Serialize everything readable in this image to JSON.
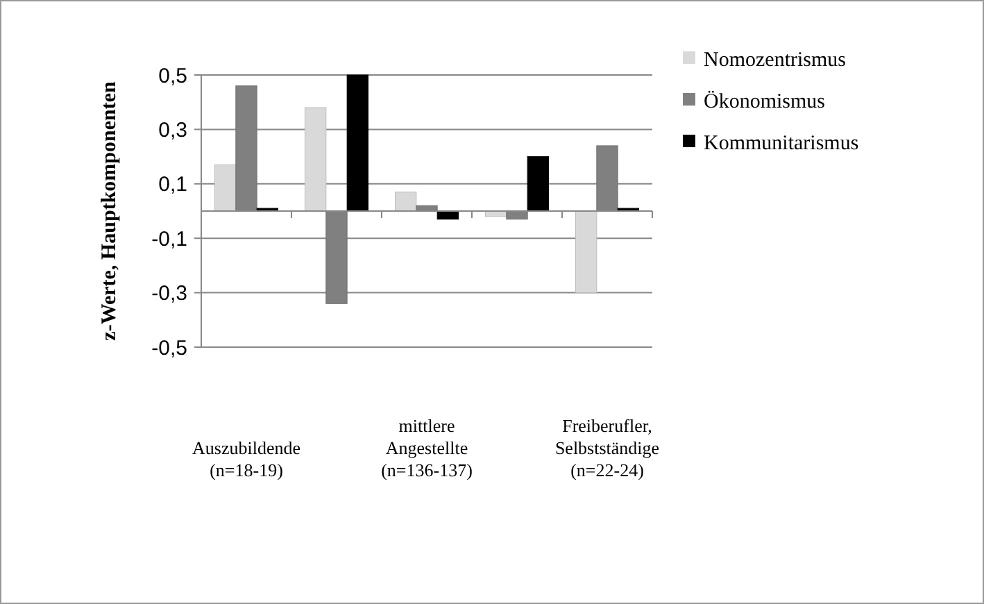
{
  "chart_data": {
    "type": "bar",
    "ylabel": "z-Werte, Hauptkomponenten",
    "categories": [
      "Auszubildende (n=18-19)",
      null,
      "mittlere Angestellte (n=136-137)",
      null,
      "Freiberufler, Selbstständige (n=22-24)"
    ],
    "series": [
      {
        "name": "Nomozentrismus",
        "color": "#d9d9d9",
        "values": [
          0.17,
          0.38,
          0.07,
          -0.02,
          -0.3
        ]
      },
      {
        "name": "Ökonomismus",
        "color": "#808080",
        "values": [
          0.46,
          -0.34,
          0.02,
          -0.03,
          0.24
        ]
      },
      {
        "name": "Kommunitarismus",
        "color": "#000000",
        "values": [
          0.01,
          0.5,
          -0.03,
          0.2,
          0.01
        ]
      }
    ],
    "ylim": [
      -0.5,
      0.5
    ],
    "yticks": [
      {
        "value": -0.5,
        "label": "-0,5"
      },
      {
        "value": -0.3,
        "label": "-0,3"
      },
      {
        "value": -0.1,
        "label": "-0,1"
      },
      {
        "value": 0.1,
        "label": "0,1"
      },
      {
        "value": 0.3,
        "label": "0,3"
      },
      {
        "value": 0.5,
        "label": "0,5"
      }
    ],
    "grid": "y",
    "legend": "right"
  }
}
